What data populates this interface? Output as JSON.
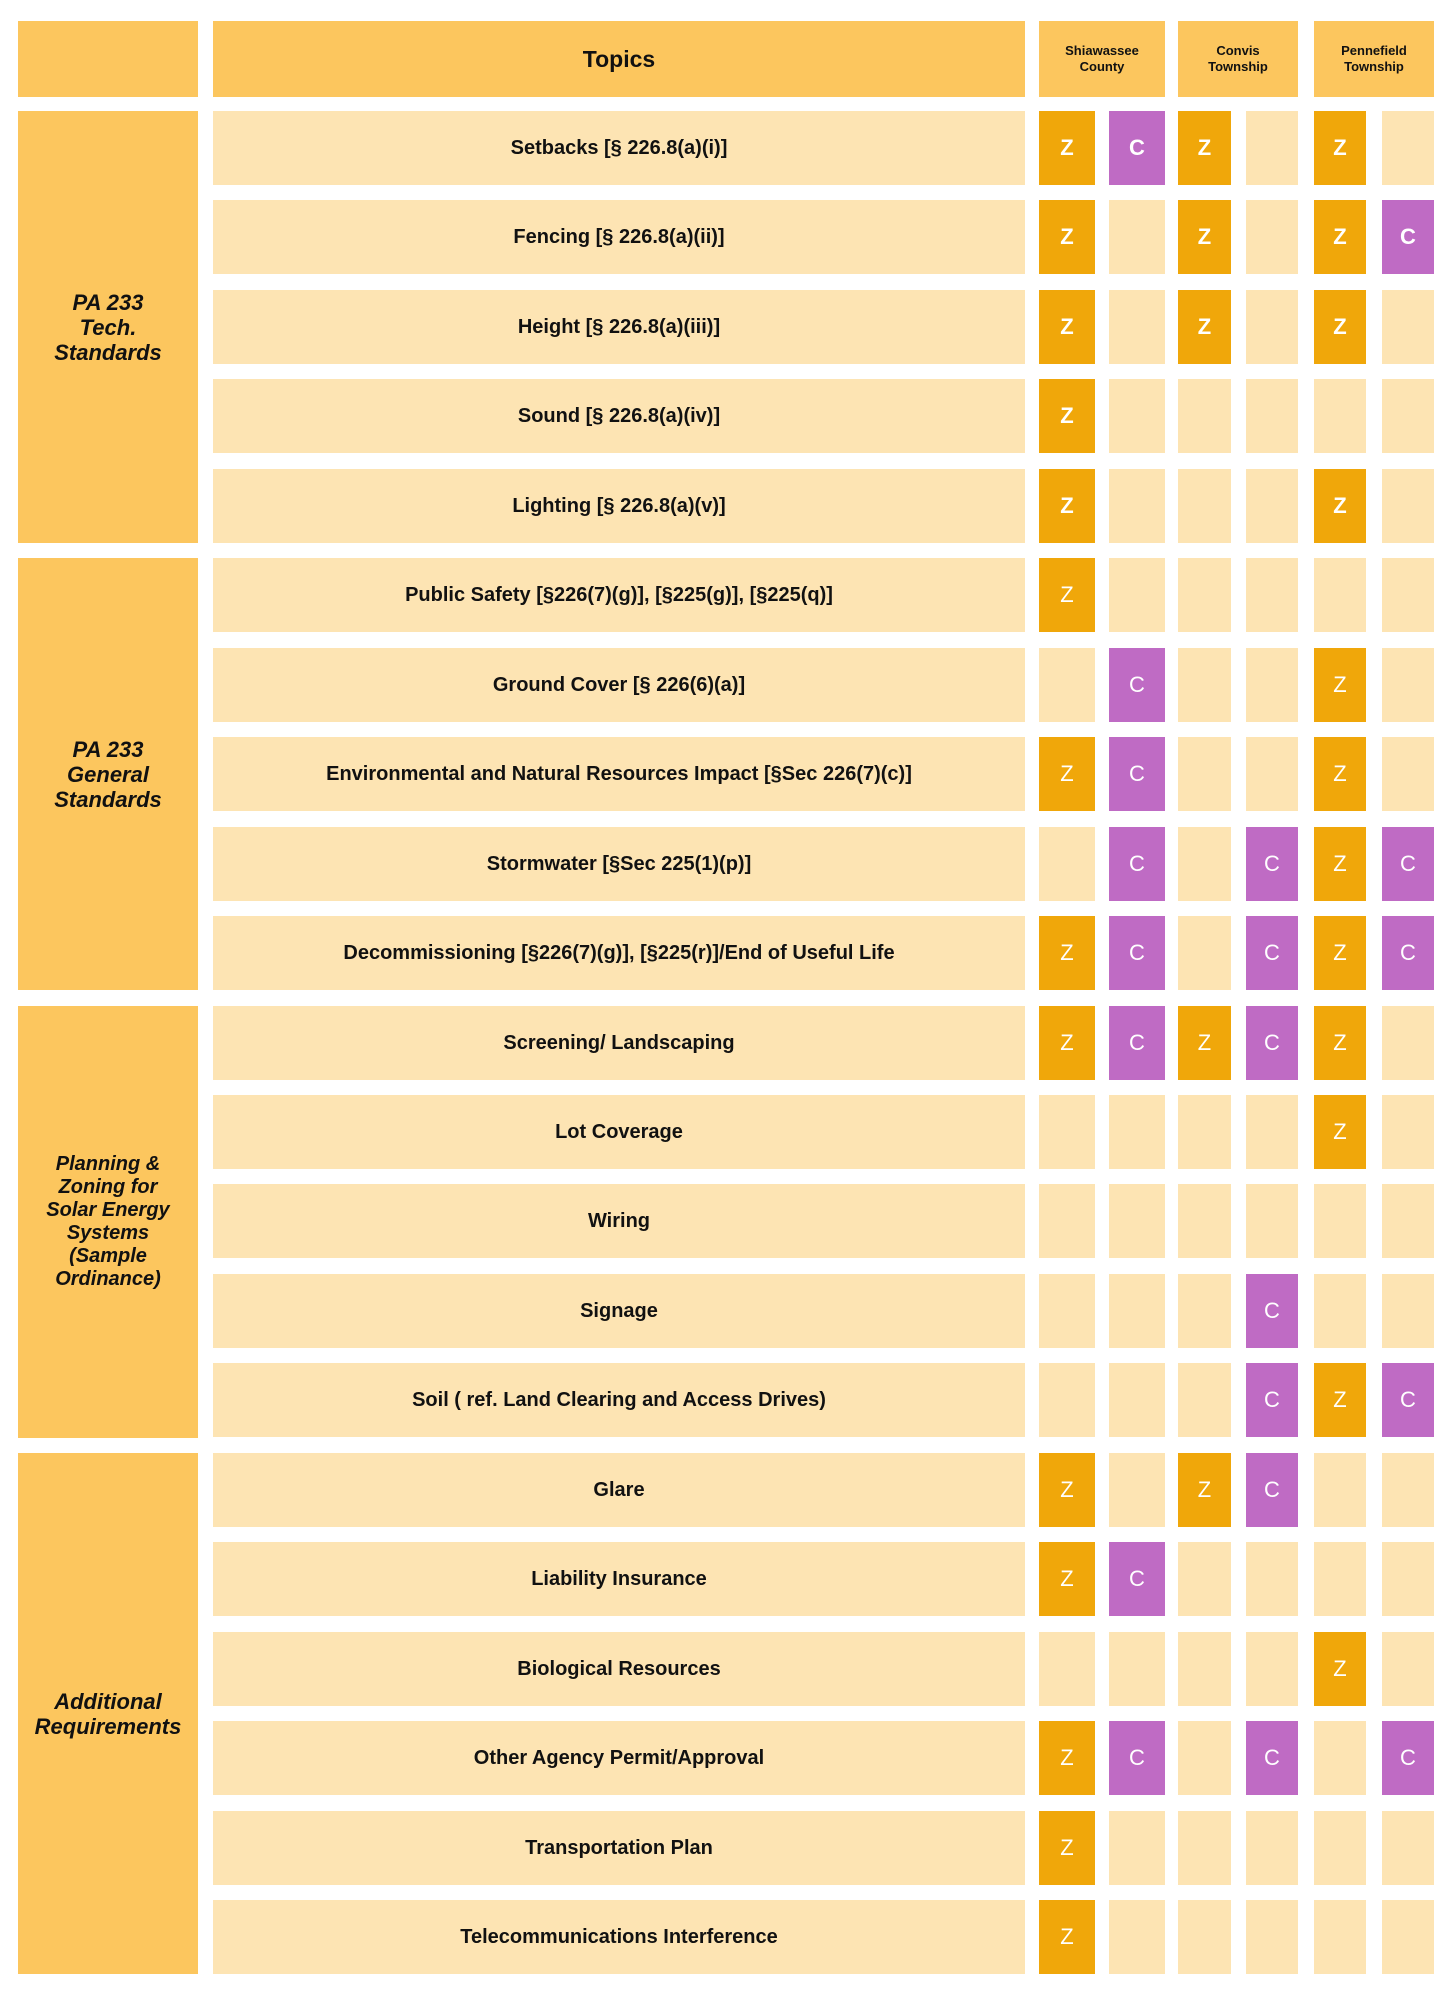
{
  "header": {
    "topics_label": "Topics",
    "municipalities": [
      {
        "lines": [
          "Shiawassee",
          "County"
        ]
      },
      {
        "lines": [
          "Convis",
          "Township"
        ]
      },
      {
        "lines": [
          "Pennefield",
          "Township"
        ]
      }
    ]
  },
  "colors": {
    "section_bg": "#fcc65e",
    "row_bg": "#fde4b3",
    "zoning_mark": "#f0a70a",
    "consent_mark": "#bf6bc4"
  },
  "marks": {
    "Z": "Z",
    "C": "C"
  },
  "sections": [
    {
      "label_lines": [
        "PA 233",
        "Tech.",
        "Standards"
      ],
      "rows": 5
    },
    {
      "label_lines": [
        "PA 233",
        "General",
        "Standards"
      ],
      "rows": 5
    },
    {
      "label_lines": [
        "Planning &",
        "Zoning for",
        "Solar Energy",
        "Systems",
        "(Sample",
        "Ordinance)"
      ],
      "rows": 5
    },
    {
      "label_lines": [
        "Additional",
        "Requirements"
      ],
      "rows": 6
    }
  ],
  "rows": [
    {
      "topic": "Setbacks [§ 226.8(a)(i)]",
      "cells": [
        "Z",
        "C",
        "Z",
        "",
        "Z",
        ""
      ],
      "bold": true
    },
    {
      "topic": "Fencing [§ 226.8(a)(ii)]",
      "cells": [
        "Z",
        "",
        "Z",
        "",
        "Z",
        "C"
      ],
      "bold": true
    },
    {
      "topic": "Height  [§ 226.8(a)(iii)]",
      "cells": [
        "Z",
        "",
        "Z",
        "",
        "Z",
        ""
      ],
      "bold": true
    },
    {
      "topic": "Sound [§ 226.8(a)(iv)]",
      "cells": [
        "Z",
        "",
        "",
        "",
        "",
        ""
      ],
      "bold": true
    },
    {
      "topic": "Lighting [§ 226.8(a)(v)]",
      "cells": [
        "Z",
        "",
        "",
        "",
        "Z",
        ""
      ],
      "bold": true
    },
    {
      "topic": "Public Safety [§226(7)(g)], [§225(g)], [§225(q)]",
      "cells": [
        "Z",
        "",
        "",
        "",
        "",
        ""
      ],
      "bold": false
    },
    {
      "topic": "Ground Cover [§ 226(6)(a)]",
      "cells": [
        "",
        "C",
        "",
        "",
        "Z",
        ""
      ],
      "bold": false
    },
    {
      "topic": "Environmental and Natural Resources Impact  [§Sec 226(7)(c)]",
      "cells": [
        "Z",
        "C",
        "",
        "",
        "Z",
        ""
      ],
      "bold": false
    },
    {
      "topic": "Stormwater [§Sec 225(1)(p)]",
      "cells": [
        "",
        "C",
        "",
        "C",
        "Z",
        "C"
      ],
      "bold": false
    },
    {
      "topic": "Decommissioning [§226(7)(g)], [§225(r)]/End of Useful Life",
      "cells": [
        "Z",
        "C",
        "",
        "C",
        "Z",
        "C"
      ],
      "bold": false
    },
    {
      "topic": "Screening/ Landscaping",
      "cells": [
        "Z",
        "C",
        "Z",
        "C",
        "Z",
        ""
      ],
      "bold": false
    },
    {
      "topic": "Lot Coverage",
      "cells": [
        "",
        "",
        "",
        "",
        "Z",
        ""
      ],
      "bold": false
    },
    {
      "topic": "Wiring",
      "cells": [
        "",
        "",
        "",
        "",
        "",
        ""
      ],
      "bold": false
    },
    {
      "topic": "Signage",
      "cells": [
        "",
        "",
        "",
        "C",
        "",
        ""
      ],
      "bold": false
    },
    {
      "topic": "Soil ( ref. Land Clearing and Access Drives)",
      "cells": [
        "",
        "",
        "",
        "C",
        "Z",
        "C"
      ],
      "bold": false
    },
    {
      "topic": "Glare",
      "cells": [
        "Z",
        "",
        "Z",
        "C",
        "",
        ""
      ],
      "bold": false
    },
    {
      "topic": "Liability Insurance",
      "cells": [
        "Z",
        "C",
        "",
        "",
        "",
        ""
      ],
      "bold": false
    },
    {
      "topic": "Biological Resources",
      "cells": [
        "",
        "",
        "",
        "",
        "Z",
        ""
      ],
      "bold": false
    },
    {
      "topic": "Other Agency Permit/Approval",
      "cells": [
        "Z",
        "C",
        "",
        "C",
        "",
        "C"
      ],
      "bold": false
    },
    {
      "topic": "Transportation Plan",
      "cells": [
        "Z",
        "",
        "",
        "",
        "",
        ""
      ],
      "bold": false
    },
    {
      "topic": "Telecommunications Interference",
      "cells": [
        "Z",
        "",
        "",
        "",
        "",
        ""
      ],
      "bold": false
    }
  ]
}
